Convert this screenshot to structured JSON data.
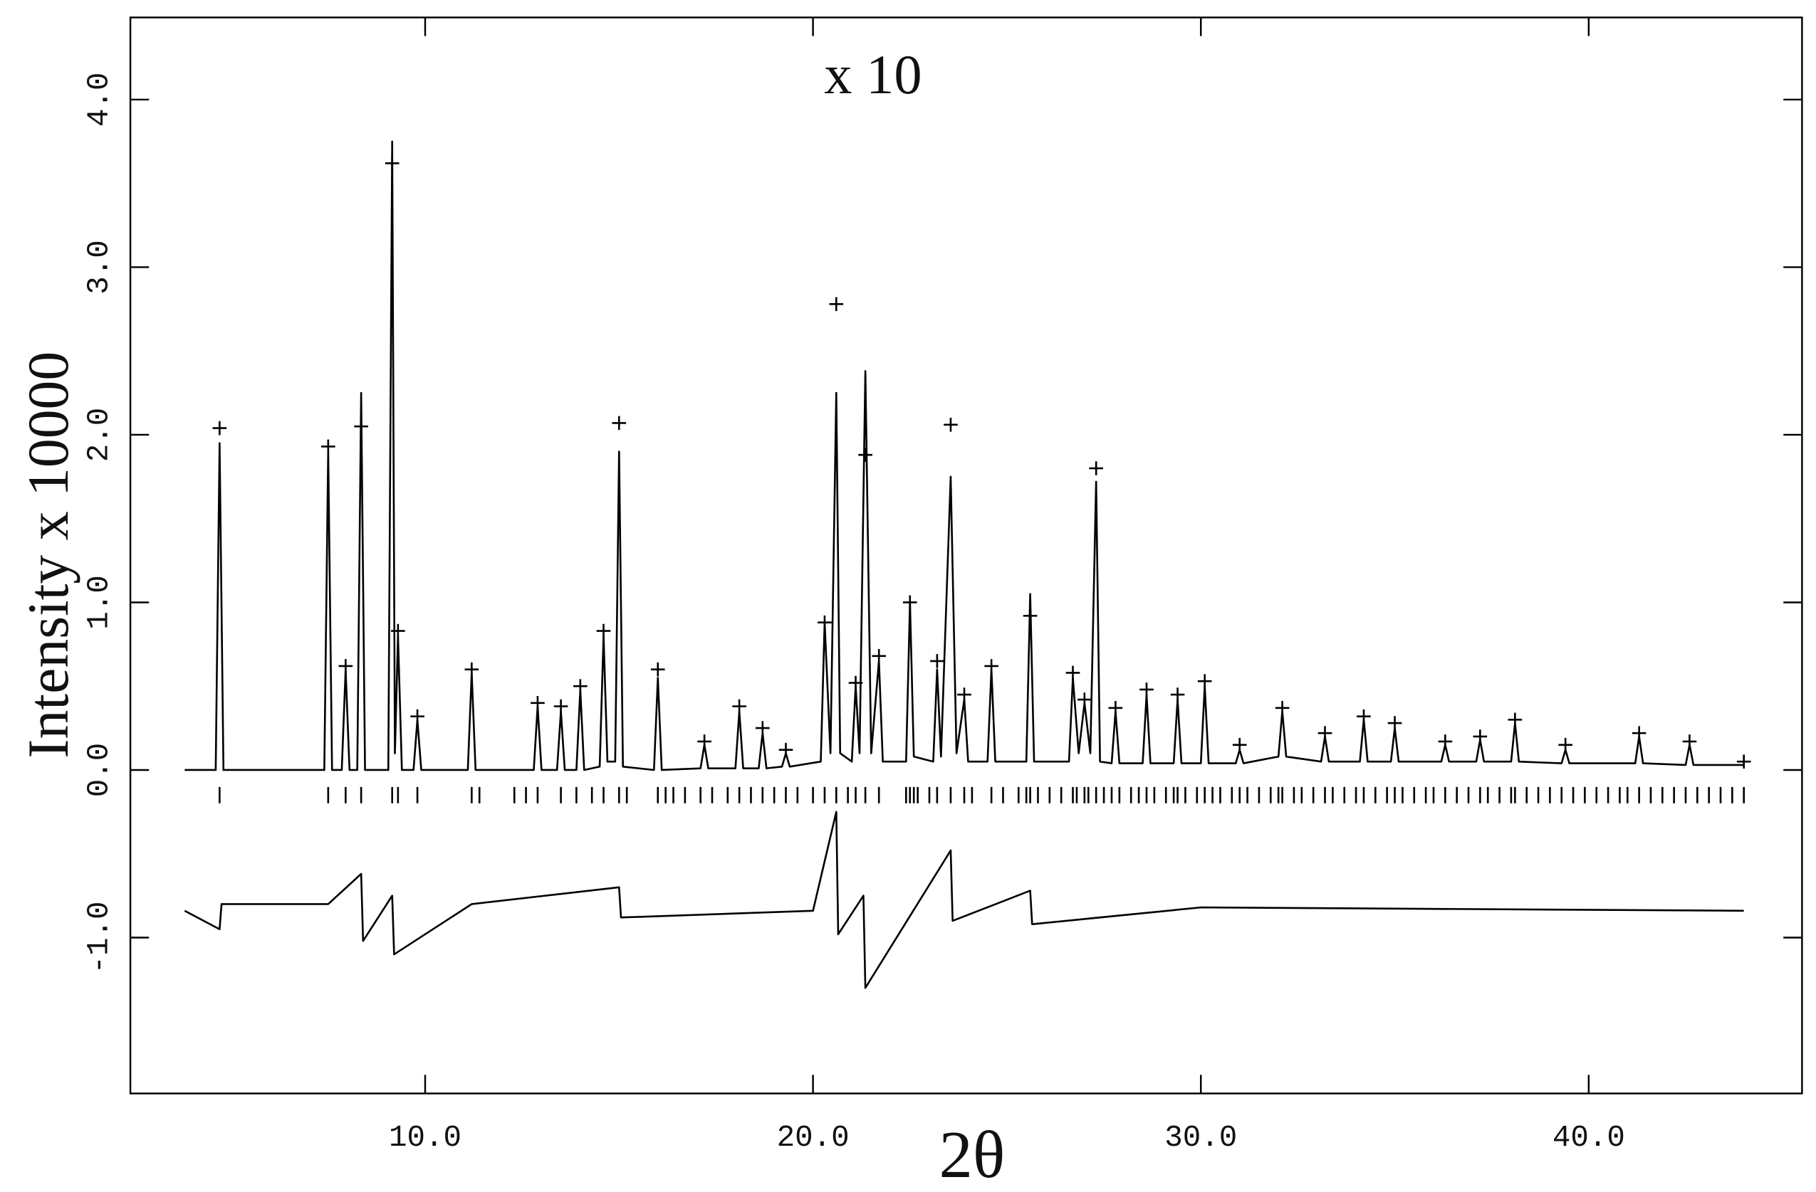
{
  "chart_data": {
    "type": "line",
    "annotation": "x 10",
    "xlabel": "2θ",
    "ylabel": "Intensity x 10000",
    "xlim": [
      2.4,
      45.5
    ],
    "ylim": [
      -1.93,
      4.49
    ],
    "xticks": [
      {
        "value": 10,
        "label": "10.0"
      },
      {
        "value": 20,
        "label": "20.0"
      },
      {
        "value": 30,
        "label": "30.0"
      },
      {
        "value": 40,
        "label": "40.0"
      }
    ],
    "yticks": [
      {
        "value": -1,
        "label": "-1.0"
      },
      {
        "value": 0,
        "label": "0.0"
      },
      {
        "value": 1,
        "label": "1.0"
      },
      {
        "value": 2,
        "label": "2.0"
      },
      {
        "value": 3,
        "label": "3.0"
      },
      {
        "value": 4,
        "label": "4.0"
      }
    ],
    "grid": false,
    "series": [
      {
        "marker": "line",
        "color": "#000000",
        "x": [
          3.8,
          4.6,
          4.7,
          4.8,
          7.4,
          7.5,
          7.6,
          7.85,
          7.95,
          8.05,
          8.25,
          8.35,
          8.45,
          9.05,
          9.15,
          9.22,
          9.3,
          9.4,
          9.7,
          9.8,
          9.9,
          11.1,
          11.2,
          11.3,
          12.8,
          12.9,
          13.0,
          13.4,
          13.5,
          13.6,
          13.9,
          14.0,
          14.1,
          14.5,
          14.6,
          14.7,
          14.9,
          15.0,
          15.1,
          15.9,
          16.0,
          16.1,
          17.1,
          17.2,
          17.3,
          18.0,
          18.1,
          18.2,
          18.6,
          18.7,
          18.8,
          19.2,
          19.3,
          19.4,
          20.2,
          20.3,
          20.45,
          20.6,
          20.7,
          21.0,
          21.1,
          21.2,
          21.35,
          21.5,
          21.7,
          21.8,
          22.4,
          22.5,
          22.6,
          23.1,
          23.2,
          23.3,
          23.55,
          23.7,
          23.9,
          24.0,
          24.5,
          24.6,
          24.7,
          25.5,
          25.6,
          25.7,
          26.6,
          26.7,
          26.85,
          27.0,
          27.15,
          27.3,
          27.4,
          27.7,
          27.8,
          27.9,
          28.5,
          28.6,
          28.7,
          29.3,
          29.4,
          29.5,
          30.0,
          30.1,
          30.2,
          30.9,
          31.0,
          31.1,
          32.0,
          32.1,
          32.2,
          33.1,
          33.2,
          33.3,
          34.1,
          34.2,
          34.3,
          34.9,
          35.0,
          35.1,
          36.2,
          36.3,
          36.4,
          37.1,
          37.2,
          37.3,
          38.0,
          38.1,
          38.2,
          39.3,
          39.4,
          39.5,
          41.2,
          41.3,
          41.4,
          42.5,
          42.6,
          42.7,
          44.0
        ],
        "values": [
          0,
          0,
          1.95,
          0,
          0,
          1.9,
          0,
          0,
          0.6,
          0,
          0,
          2.25,
          0,
          0,
          3.75,
          0.1,
          0.8,
          0,
          0,
          0.3,
          0,
          0,
          0.58,
          0,
          0,
          0.38,
          0,
          0,
          0.35,
          0,
          0,
          0.48,
          0,
          0.02,
          0.8,
          0.05,
          0.05,
          1.9,
          0.02,
          0,
          0.55,
          0,
          0.01,
          0.15,
          0.01,
          0.01,
          0.35,
          0.01,
          0.01,
          0.22,
          0.01,
          0.02,
          0.1,
          0.02,
          0.05,
          0.88,
          0.1,
          2.25,
          0.1,
          0.05,
          0.5,
          0.1,
          2.38,
          0.1,
          0.65,
          0.05,
          0.05,
          1.0,
          0.08,
          0.05,
          0.6,
          0.08,
          1.75,
          0.1,
          0.42,
          0.05,
          0.05,
          0.6,
          0.05,
          0.05,
          1.05,
          0.05,
          0.05,
          0.55,
          0.1,
          0.4,
          0.1,
          1.72,
          0.05,
          0.04,
          0.35,
          0.04,
          0.04,
          0.45,
          0.04,
          0.04,
          0.42,
          0.04,
          0.04,
          0.5,
          0.04,
          0.04,
          0.12,
          0.04,
          0.08,
          0.35,
          0.08,
          0.05,
          0.2,
          0.05,
          0.05,
          0.3,
          0.05,
          0.05,
          0.25,
          0.05,
          0.05,
          0.15,
          0.05,
          0.05,
          0.18,
          0.05,
          0.05,
          0.28,
          0.05,
          0.04,
          0.12,
          0.04,
          0.04,
          0.2,
          0.04,
          0.03,
          0.15,
          0.03,
          0.03
        ]
      },
      {
        "marker": "+",
        "color": "#000000",
        "x": [
          4.7,
          7.5,
          7.95,
          8.35,
          9.15,
          9.3,
          9.8,
          11.2,
          12.9,
          13.5,
          14.0,
          14.6,
          15.0,
          16.0,
          17.2,
          18.1,
          18.7,
          19.3,
          20.3,
          20.6,
          21.1,
          21.35,
          21.7,
          22.5,
          23.2,
          23.55,
          23.9,
          24.6,
          25.6,
          26.7,
          27.0,
          27.3,
          27.8,
          28.6,
          29.4,
          30.1,
          31.0,
          32.1,
          33.2,
          34.2,
          35.0,
          36.3,
          37.2,
          38.1,
          39.4,
          41.3,
          42.6,
          44.0
        ],
        "values": [
          2.04,
          1.93,
          0.62,
          2.05,
          3.62,
          0.83,
          0.32,
          0.6,
          0.4,
          0.38,
          0.5,
          0.83,
          2.07,
          0.6,
          0.17,
          0.38,
          0.25,
          0.12,
          0.88,
          2.78,
          0.52,
          1.88,
          0.68,
          1.0,
          0.65,
          2.06,
          0.45,
          0.62,
          0.92,
          0.58,
          0.42,
          1.8,
          0.37,
          0.48,
          0.45,
          0.53,
          0.15,
          0.37,
          0.22,
          0.32,
          0.28,
          0.17,
          0.2,
          0.3,
          0.15,
          0.22,
          0.17,
          0.05
        ]
      },
      {
        "marker": "line",
        "color": "#000000",
        "x": [
          3.8,
          4.7,
          4.75,
          7.5,
          8.35,
          8.4,
          9.15,
          9.2,
          11.2,
          15.0,
          15.05,
          20.0,
          20.6,
          20.65,
          21.3,
          21.35,
          23.55,
          23.6,
          25.6,
          25.65,
          30.0,
          44.0
        ],
        "values": [
          -0.84,
          -0.95,
          -0.8,
          -0.8,
          -0.62,
          -1.02,
          -0.75,
          -1.1,
          -0.8,
          -0.7,
          -0.88,
          -0.84,
          -0.25,
          -0.98,
          -0.75,
          -1.3,
          -0.48,
          -0.9,
          -0.72,
          -0.92,
          -0.82,
          -0.84
        ]
      },
      {
        "marker": "tick",
        "color": "#000000",
        "x": [
          4.7,
          7.5,
          7.95,
          8.35,
          9.15,
          9.3,
          9.8,
          11.2,
          11.4,
          12.3,
          12.6,
          12.9,
          13.5,
          13.9,
          14.3,
          14.6,
          15.0,
          15.2,
          16.0,
          16.2,
          16.4,
          16.7,
          17.1,
          17.4,
          17.8,
          18.1,
          18.4,
          18.7,
          19.0,
          19.3,
          19.6,
          20.0,
          20.3,
          20.6,
          20.9,
          21.1,
          21.35,
          21.7,
          22.4,
          22.5,
          22.6,
          22.7,
          23.0,
          23.2,
          23.55,
          23.9,
          24.1,
          24.6,
          24.9,
          25.3,
          25.5,
          25.6,
          25.8,
          26.1,
          26.4,
          26.7,
          26.8,
          27.0,
          27.1,
          27.3,
          27.5,
          27.7,
          27.9,
          28.2,
          28.4,
          28.6,
          28.8,
          29.1,
          29.3,
          29.4,
          29.6,
          29.9,
          30.1,
          30.3,
          30.5,
          30.8,
          31.0,
          31.2,
          31.5,
          31.8,
          32.0,
          32.1,
          32.4,
          32.6,
          32.9,
          33.2,
          33.4,
          33.7,
          34.0,
          34.2,
          34.5,
          34.8,
          35.0,
          35.2,
          35.5,
          35.8,
          36.0,
          36.3,
          36.6,
          36.9,
          37.2,
          37.4,
          37.7,
          38.0,
          38.1,
          38.4,
          38.7,
          39.0,
          39.3,
          39.6,
          39.9,
          40.2,
          40.5,
          40.8,
          41.0,
          41.3,
          41.6,
          41.9,
          42.2,
          42.5,
          42.8,
          43.1,
          43.4,
          43.7,
          44.0
        ],
        "values": [
          -0.15,
          -0.15,
          -0.15,
          -0.15,
          -0.15,
          -0.15,
          -0.15,
          -0.15,
          -0.15,
          -0.15,
          -0.15,
          -0.15,
          -0.15,
          -0.15,
          -0.15,
          -0.15,
          -0.15,
          -0.15,
          -0.15,
          -0.15,
          -0.15,
          -0.15,
          -0.15,
          -0.15,
          -0.15,
          -0.15,
          -0.15,
          -0.15,
          -0.15,
          -0.15,
          -0.15,
          -0.15,
          -0.15,
          -0.15,
          -0.15,
          -0.15,
          -0.15,
          -0.15,
          -0.15,
          -0.15,
          -0.15,
          -0.15,
          -0.15,
          -0.15,
          -0.15,
          -0.15,
          -0.15,
          -0.15,
          -0.15,
          -0.15,
          -0.15,
          -0.15,
          -0.15,
          -0.15,
          -0.15,
          -0.15,
          -0.15,
          -0.15,
          -0.15,
          -0.15,
          -0.15,
          -0.15,
          -0.15,
          -0.15,
          -0.15,
          -0.15,
          -0.15,
          -0.15,
          -0.15,
          -0.15,
          -0.15,
          -0.15,
          -0.15,
          -0.15,
          -0.15,
          -0.15,
          -0.15,
          -0.15,
          -0.15,
          -0.15,
          -0.15,
          -0.15,
          -0.15,
          -0.15,
          -0.15,
          -0.15,
          -0.15,
          -0.15,
          -0.15,
          -0.15,
          -0.15,
          -0.15,
          -0.15,
          -0.15,
          -0.15,
          -0.15,
          -0.15,
          -0.15,
          -0.15,
          -0.15,
          -0.15,
          -0.15,
          -0.15,
          -0.15,
          -0.15,
          -0.15,
          -0.15,
          -0.15,
          -0.15,
          -0.15,
          -0.15,
          -0.15,
          -0.15,
          -0.15,
          -0.15,
          -0.15,
          -0.15,
          -0.15,
          -0.15,
          -0.15,
          -0.15,
          -0.15,
          -0.15,
          -0.15,
          -0.15
        ]
      }
    ]
  }
}
